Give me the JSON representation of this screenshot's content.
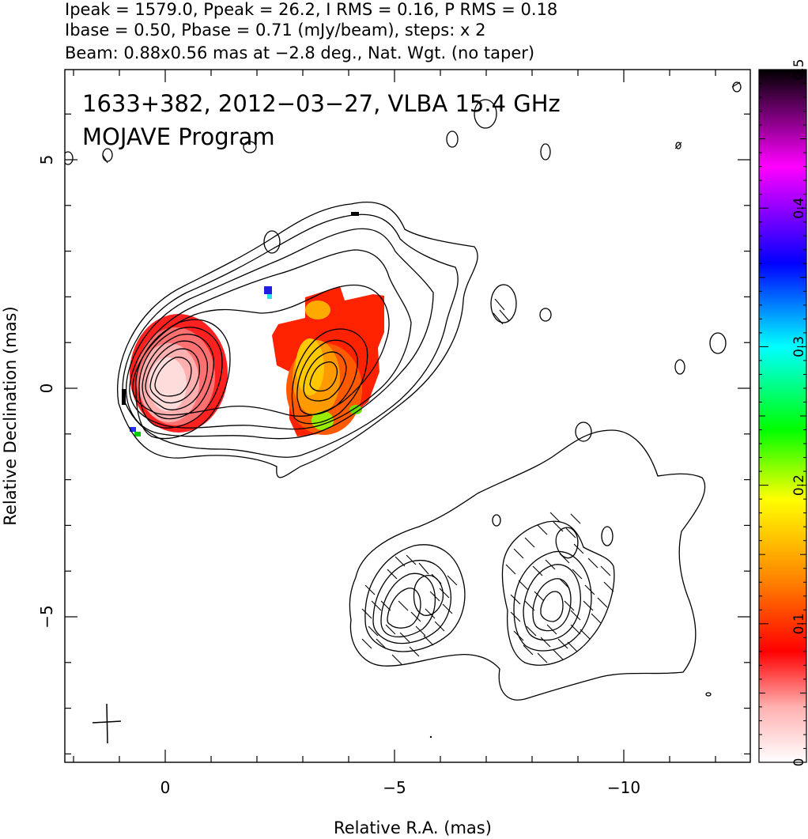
{
  "header": {
    "line1": "Ipeak = 1579.0, Ppeak = 26.2, I RMS = 0.16, P RMS = 0.18",
    "line2": "Ibase = 0.50, Pbase = 0.71 (mJy/beam), steps: x 2",
    "line3": "Beam: 0.88x0.56 mas at −2.8 deg., Nat. Wgt. (no taper)"
  },
  "chart_data": {
    "type": "heatmap",
    "xlabel": "Relative R.A. (mas)",
    "ylabel": "Relative Declination (mas)",
    "xlim": [
      2.2,
      -13
    ],
    "ylim": [
      -8.1,
      7
    ],
    "x_ticks": [
      {
        "value": 0,
        "label": "0"
      },
      {
        "value": -5,
        "label": "−5"
      },
      {
        "value": -10,
        "label": "−10"
      }
    ],
    "y_ticks": [
      {
        "value": 5,
        "label": "5"
      },
      {
        "value": 0,
        "label": "0"
      },
      {
        "value": -5,
        "label": "−5"
      }
    ],
    "annotations": {
      "source": "1633+382, 2012−03−27, VLBA 15.4 GHz",
      "program": "MOJAVE Program"
    },
    "colorbar": {
      "min": 0,
      "max": 0.5,
      "tick_labels": [
        "0",
        "0.1",
        "0.2",
        "0.3",
        "0.4",
        "0.5"
      ],
      "tick_values": [
        0,
        0.1,
        0.2,
        0.3,
        0.4,
        0.5
      ],
      "colors": [
        "#ffffff",
        "#ffb0b0",
        "#ff0000",
        "#ff8000",
        "#ffff00",
        "#00ff00",
        "#00ffff",
        "#0000ff",
        "#ff00ff",
        "#000000"
      ]
    },
    "features": [
      {
        "component": "core",
        "x": 0.0,
        "y": 0.0,
        "frac_pol_min": 0.0,
        "frac_pol_max": 0.08
      },
      {
        "component": "inner jet",
        "x": -3.5,
        "y": 0.3,
        "frac_pol_min": 0.1,
        "frac_pol_max": 0.2
      },
      {
        "component": "southern lobe east",
        "x": -5.0,
        "y": -5.0
      },
      {
        "component": "southern lobe west",
        "x": -8.5,
        "y": -5.1
      }
    ],
    "beam": {
      "major_mas": 0.88,
      "minor_mas": 0.56,
      "pa_deg": -2.8,
      "x": -1.2,
      "y": -7.5
    },
    "grid": false
  }
}
